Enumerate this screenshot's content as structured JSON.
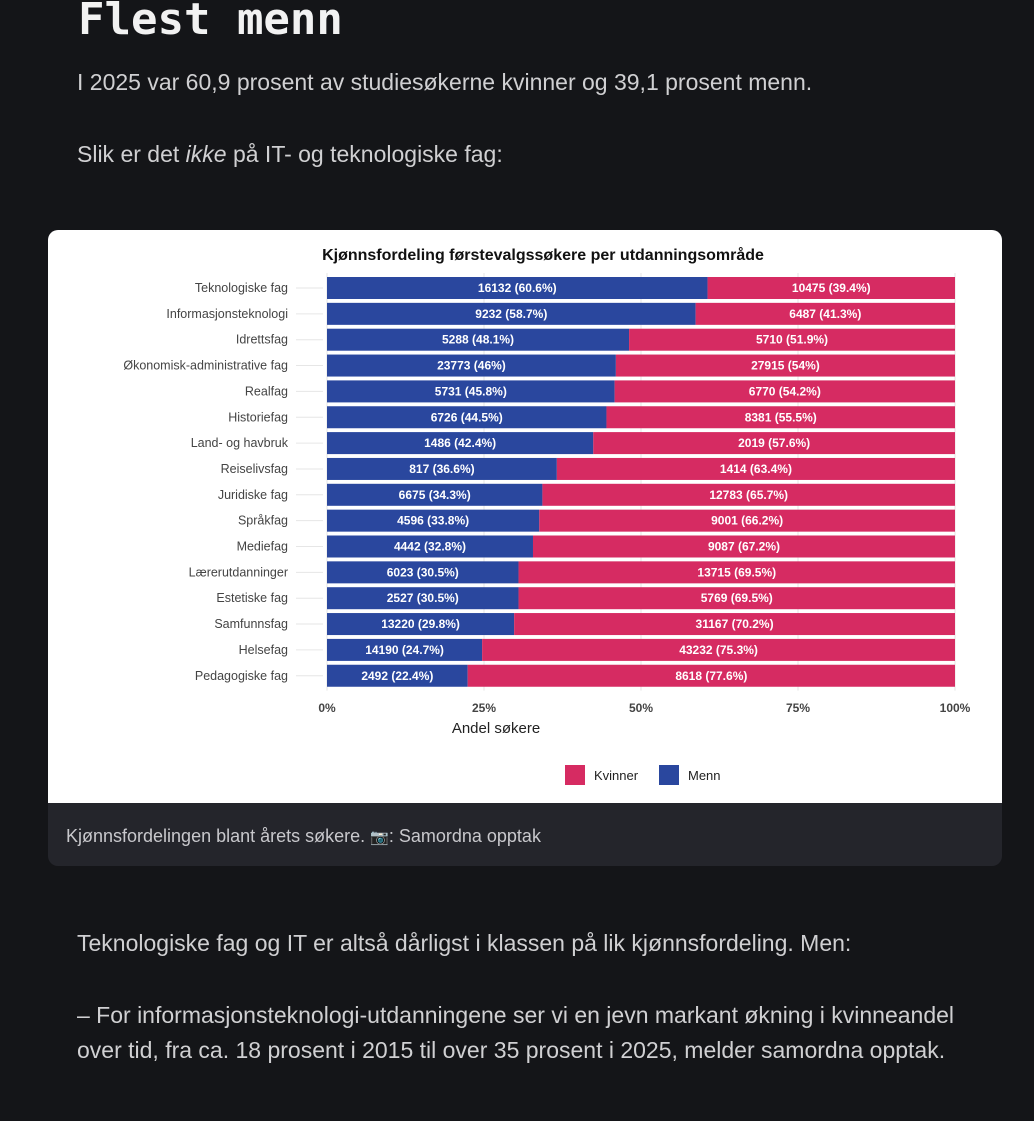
{
  "heading": "Flest menn",
  "intro": "I 2025 var 60,9 prosent av studiesøkerne kvinner og 39,1 prosent menn.",
  "lead_before": "Slik er det ",
  "lead_em": "ikke",
  "lead_after": " på IT- og teknologiske fag:",
  "caption": {
    "text": "Kjønnsfordelingen blant årets søkere. ",
    "icon": "camera-icon",
    "icon_glyph": "📷",
    "source": ": Samordna opptak"
  },
  "outro1": "Teknologiske fag og IT er altså dårligst i klassen på lik kjønnsfordeling. Men:",
  "outro2": "– For informasjonsteknologi-utdanningene ser vi en jevn markant økning i kvinneandel over tid, fra ca. 18 prosent i 2015 til over 35 prosent i 2025, melder samordna opptak.",
  "chart_data": {
    "type": "bar",
    "orientation": "horizontal",
    "stacked": "percent",
    "title": "Kjønnsfordeling førstevalgssøkere per utdanningsområde",
    "xlabel": "Andel søkere",
    "ylabel": "",
    "xlim": [
      0,
      100
    ],
    "xticks": [
      "0%",
      "25%",
      "50%",
      "75%",
      "100%"
    ],
    "legend_position": "bottom",
    "categories": [
      "Teknologiske fag",
      "Informasjonsteknologi",
      "Idrettsfag",
      "Økonomisk-administrative fag",
      "Realfag",
      "Historiefag",
      "Land- og havbruk",
      "Reiselivsfag",
      "Juridiske fag",
      "Språkfag",
      "Mediefag",
      "Lærerutdanninger",
      "Estetiske fag",
      "Samfunnsfag",
      "Helsefag",
      "Pedagogiske fag"
    ],
    "series": [
      {
        "name": "Menn",
        "color": "#2a479e",
        "counts": [
          16132,
          9232,
          5288,
          23773,
          5731,
          6726,
          1486,
          817,
          6675,
          4596,
          4442,
          6023,
          2527,
          13220,
          14190,
          2492
        ],
        "percent": [
          60.6,
          58.7,
          48.1,
          46,
          45.8,
          44.5,
          42.4,
          36.6,
          34.3,
          33.8,
          32.8,
          30.5,
          30.5,
          29.8,
          24.7,
          22.4
        ],
        "labels": [
          "16132 (60.6%)",
          "9232 (58.7%)",
          "5288 (48.1%)",
          "23773 (46%)",
          "5731 (45.8%)",
          "6726 (44.5%)",
          "1486 (42.4%)",
          "817 (36.6%)",
          "6675 (34.3%)",
          "4596 (33.8%)",
          "4442 (32.8%)",
          "6023 (30.5%)",
          "2527 (30.5%)",
          "13220 (29.8%)",
          "14190 (24.7%)",
          "2492 (22.4%)"
        ]
      },
      {
        "name": "Kvinner",
        "color": "#d62b62",
        "counts": [
          10475,
          6487,
          5710,
          27915,
          6770,
          8381,
          2019,
          1414,
          12783,
          9001,
          9087,
          13715,
          5769,
          31167,
          43232,
          8618
        ],
        "percent": [
          39.4,
          41.3,
          51.9,
          54,
          54.2,
          55.5,
          57.6,
          63.4,
          65.7,
          66.2,
          67.2,
          69.5,
          69.5,
          70.2,
          75.3,
          77.6
        ],
        "labels": [
          "10475 (39.4%)",
          "6487 (41.3%)",
          "5710 (51.9%)",
          "27915 (54%)",
          "6770 (54.2%)",
          "8381 (55.5%)",
          "2019 (57.6%)",
          "1414 (63.4%)",
          "12783 (65.7%)",
          "9001 (66.2%)",
          "9087 (67.2%)",
          "13715 (69.5%)",
          "5769 (69.5%)",
          "31167 (70.2%)",
          "43232 (75.3%)",
          "8618 (77.6%)"
        ]
      }
    ],
    "legend": [
      "Kvinner",
      "Menn"
    ]
  }
}
